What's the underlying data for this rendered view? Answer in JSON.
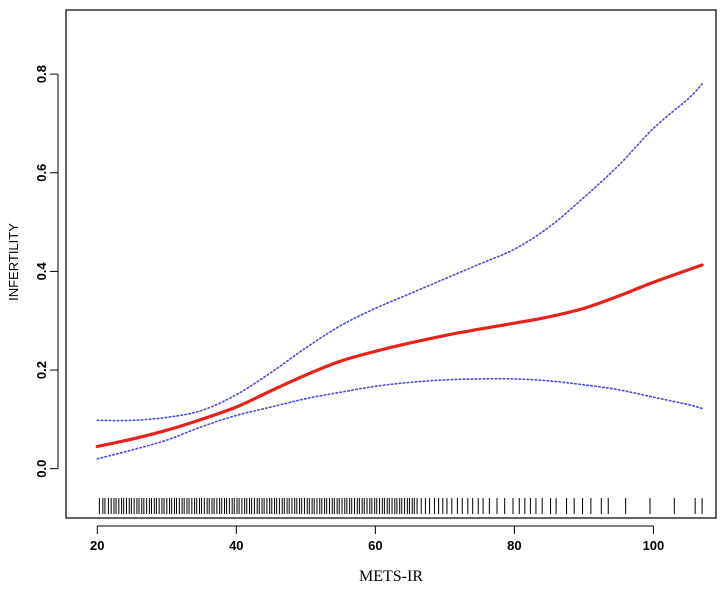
{
  "chart_data": {
    "type": "line",
    "xlabel": "METS-IR",
    "ylabel": "INFERTILITY",
    "xlim": [
      15.5,
      109
    ],
    "ylim": [
      -0.1,
      0.93
    ],
    "x_ticks": [
      "20",
      "40",
      "60",
      "80",
      "100"
    ],
    "y_ticks": [
      "0.0",
      "0.2",
      "0.4",
      "0.6",
      "0.8"
    ],
    "grid": false,
    "legend": "none",
    "series": [
      {
        "role": "estimate",
        "color": "#e8211b",
        "style": "solid",
        "x": [
          20,
          25,
          30,
          35,
          40,
          45,
          50,
          55,
          60,
          65,
          70,
          75,
          80,
          85,
          90,
          95,
          100,
          105,
          107
        ],
        "y": [
          0.045,
          0.06,
          0.078,
          0.1,
          0.125,
          0.158,
          0.19,
          0.218,
          0.238,
          0.255,
          0.27,
          0.283,
          0.295,
          0.308,
          0.325,
          0.35,
          0.378,
          0.403,
          0.413
        ]
      },
      {
        "role": "upper-ci",
        "color": "#4a4ad6",
        "style": "dotted",
        "x": [
          20,
          25,
          30,
          35,
          40,
          45,
          50,
          55,
          60,
          65,
          70,
          75,
          80,
          85,
          90,
          95,
          100,
          105,
          107
        ],
        "y": [
          0.098,
          0.098,
          0.104,
          0.118,
          0.15,
          0.195,
          0.245,
          0.29,
          0.325,
          0.355,
          0.385,
          0.415,
          0.445,
          0.49,
          0.55,
          0.615,
          0.69,
          0.75,
          0.78
        ]
      },
      {
        "role": "lower-ci",
        "color": "#4a4ad6",
        "style": "dotted",
        "x": [
          20,
          25,
          30,
          35,
          40,
          45,
          50,
          55,
          60,
          65,
          70,
          75,
          80,
          85,
          90,
          95,
          100,
          105,
          107
        ],
        "y": [
          0.02,
          0.038,
          0.058,
          0.085,
          0.108,
          0.125,
          0.142,
          0.155,
          0.167,
          0.175,
          0.18,
          0.182,
          0.182,
          0.178,
          0.17,
          0.16,
          0.145,
          0.13,
          0.122
        ]
      }
    ],
    "rug": [
      20.3,
      20.8,
      21.1,
      21.6,
      22.0,
      22.4,
      22.7,
      23.1,
      23.5,
      23.8,
      24.2,
      24.6,
      24.9,
      25.3,
      25.7,
      26.0,
      26.4,
      26.7,
      27.1,
      27.5,
      27.8,
      28.2,
      28.5,
      28.9,
      29.3,
      29.6,
      30.0,
      30.4,
      30.7,
      31.1,
      31.4,
      31.8,
      32.2,
      32.5,
      32.9,
      33.2,
      33.6,
      34.0,
      34.3,
      34.7,
      35.0,
      35.4,
      35.8,
      36.1,
      36.5,
      36.8,
      37.2,
      37.6,
      37.9,
      38.3,
      38.6,
      39.0,
      39.4,
      39.7,
      40.1,
      40.4,
      40.8,
      41.2,
      41.5,
      41.9,
      42.2,
      42.6,
      43.0,
      43.3,
      43.7,
      44.0,
      44.4,
      44.8,
      45.1,
      45.5,
      45.8,
      46.2,
      46.6,
      46.9,
      47.3,
      47.6,
      48.0,
      48.4,
      48.7,
      49.1,
      49.4,
      49.8,
      50.2,
      50.5,
      50.9,
      51.2,
      51.6,
      52.0,
      52.3,
      52.7,
      53.0,
      53.4,
      53.8,
      54.1,
      54.5,
      54.8,
      55.2,
      55.6,
      55.9,
      56.3,
      56.6,
      57.0,
      57.4,
      57.7,
      58.1,
      58.4,
      58.8,
      59.2,
      59.5,
      59.9,
      60.2,
      60.6,
      61.0,
      61.3,
      61.7,
      62.0,
      62.4,
      62.8,
      63.1,
      63.5,
      63.8,
      64.2,
      64.6,
      64.9,
      65.3,
      65.6,
      66.0,
      66.6,
      67.2,
      67.8,
      68.5,
      69.1,
      69.7,
      70.3,
      71.0,
      71.8,
      72.5,
      73.3,
      74.0,
      74.8,
      75.5,
      76.4,
      77.5,
      78.6,
      79.8,
      80.7,
      81.5,
      82.3,
      83.1,
      84.0,
      85.2,
      86.0,
      87.5,
      88.6,
      89.8,
      91.0,
      92.5,
      93.5,
      96.0,
      99.5,
      103.0,
      106.0,
      107.0
    ]
  }
}
